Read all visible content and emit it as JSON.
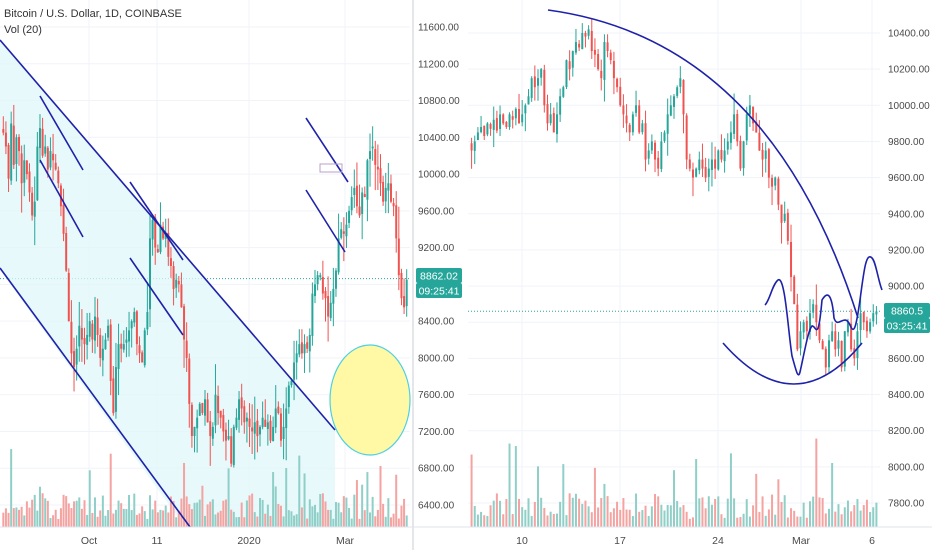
{
  "colors": {
    "up": "#26a69a",
    "down": "#ef5350",
    "vol_up": "#8fcfc7",
    "vol_down": "#f4a3a1",
    "channel_fill": "#e0f7fa",
    "trend_line": "#1e22aa",
    "ellipse_fill": "#fff9a6",
    "ellipse_stroke": "#4dd0e1",
    "price_badge": "#26a69a",
    "axis_text": "#4a4a4a",
    "grid": "#f0f3fa"
  },
  "header": {
    "title": "Bitcoin / U.S. Dollar, 1D, COINBASE",
    "indicator": "Vol (20)"
  },
  "chart_data": [
    {
      "type": "candlestick",
      "title": "Bitcoin / U.S. Dollar, 1D, COINBASE",
      "indicator": "Vol (20)",
      "x_ticks": [
        "Oct",
        "11",
        "2020",
        "Mar"
      ],
      "y_ticks": [
        "11600.00",
        "11200.00",
        "10800.00",
        "10400.00",
        "10000.00",
        "9600.00",
        "9200.00",
        "8800.00",
        "8400.00",
        "8000.00",
        "7600.00",
        "7200.00",
        "6800.00",
        "6400.00"
      ],
      "ylim": [
        6200,
        11950
      ],
      "last_price": "8862.02",
      "countdown": "09:25:41",
      "candles_close": [
        10450,
        10300,
        9950,
        10550,
        10100,
        10400,
        10250,
        9900,
        10150,
        10000,
        9800,
        9550,
        9700,
        10300,
        10500,
        10200,
        10300,
        10050,
        10250,
        10150,
        10050,
        9900,
        9650,
        9350,
        8950,
        8400,
        8050,
        7900,
        8100,
        8350,
        8200,
        8150,
        8250,
        8400,
        8200,
        8450,
        8250,
        8000,
        8100,
        8200,
        8350,
        7750,
        7400,
        7900,
        8150,
        8100,
        8150,
        8200,
        8300,
        8400,
        8500,
        8150,
        8050,
        7950,
        8300,
        8500,
        9300,
        9500,
        9200,
        9150,
        9450,
        9300,
        9350,
        9100,
        9000,
        8750,
        8850,
        8800,
        8550,
        8200,
        8000,
        7500,
        7150,
        7250,
        7350,
        7500,
        7400,
        7550,
        7300,
        7150,
        7250,
        7600,
        7400,
        7350,
        7200,
        7100,
        7150,
        6850,
        7250,
        7350,
        7550,
        7450,
        7300,
        7350,
        7250,
        7200,
        7300,
        7150,
        7250,
        7350,
        7250,
        7300,
        7100,
        7250,
        7450,
        7400,
        7100,
        7250,
        7450,
        7700,
        7750,
        7950,
        8050,
        8150,
        8050,
        8150,
        8100,
        8250,
        8700,
        8800,
        8900,
        8900,
        8700,
        8650,
        8450,
        8600,
        8750,
        8950,
        9300,
        9400,
        9350,
        9450,
        9600,
        9750,
        9850,
        9650,
        9550,
        9800,
        9750,
        10150,
        10250,
        10300,
        10100,
        10050,
        9900,
        9700,
        9850,
        9900,
        9700,
        9650,
        9300,
        8900,
        8650,
        8550,
        8850
      ]
    },
    {
      "type": "candlestick",
      "title": "",
      "indicator": "",
      "x_ticks": [
        "10",
        "17",
        "24",
        "Mar",
        "6"
      ],
      "y_ticks": [
        "10400.00",
        "10200.00",
        "10000.00",
        "9800.00",
        "9600.00",
        "9400.00",
        "9200.00",
        "9000.00",
        "8800.00",
        "8600.00",
        "8400.00",
        "8200.00",
        "8000.00",
        "7800.00"
      ],
      "ylim": [
        7700,
        10500
      ],
      "last_price": "8860.5",
      "countdown": "03:25:41",
      "candles_close": [
        9750,
        9800,
        9850,
        9880,
        9830,
        9900,
        9870,
        9920,
        9860,
        9950,
        9900,
        9880,
        9950,
        9920,
        9980,
        9900,
        9950,
        10000,
        10050,
        10150,
        10100,
        10150,
        10200,
        10000,
        9900,
        9950,
        9850,
        9950,
        10050,
        10100,
        10250,
        10200,
        10300,
        10350,
        10320,
        10400,
        10380,
        10420,
        10300,
        10280,
        10200,
        10150,
        10350,
        10300,
        10250,
        10150,
        10100,
        10000,
        9950,
        9900,
        9850,
        9950,
        10000,
        9850,
        9900,
        9700,
        9750,
        9800,
        9700,
        9650,
        9800,
        9850,
        9950,
        10000,
        10050,
        10100,
        10150,
        9950,
        9700,
        9650,
        9600,
        9650,
        9700,
        9650,
        9600,
        9650,
        9700,
        9650,
        9750,
        9700,
        9750,
        9800,
        9850,
        9950,
        9800,
        9650,
        9800,
        9950,
        10000,
        9900,
        9850,
        9750,
        9700,
        9750,
        9600,
        9550,
        9600,
        9450,
        9350,
        9400,
        9250,
        9050,
        8900,
        8650,
        8750,
        8800,
        8750,
        8850,
        8900,
        8800,
        8700,
        8650,
        8550,
        8700,
        8750,
        8650,
        8700,
        8550,
        8750,
        8800,
        8650,
        8600,
        8750,
        8850,
        8800,
        8750,
        8800,
        8850,
        8860
      ]
    }
  ]
}
